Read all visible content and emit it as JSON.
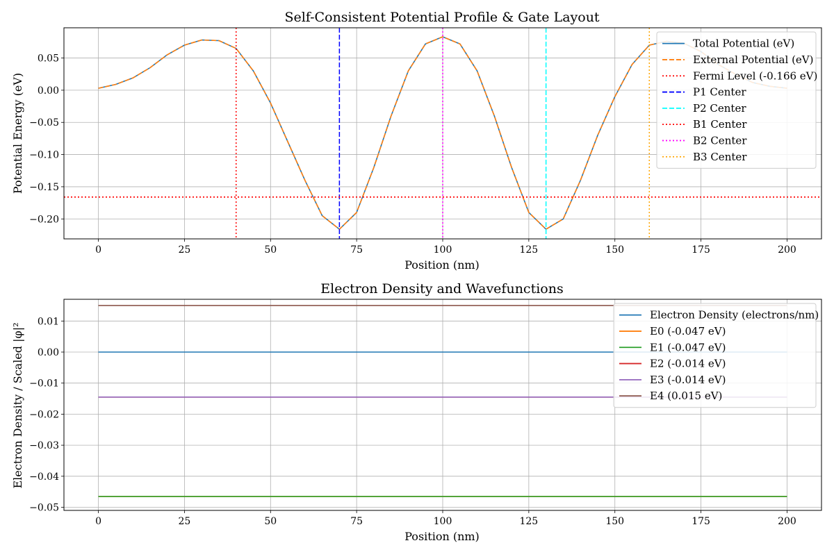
{
  "figure": {
    "background": "#ffffff"
  },
  "chart_data": [
    {
      "type": "line",
      "title": "Self-Consistent Potential Profile & Gate Layout",
      "xlabel": "Position (nm)",
      "ylabel": "Potential Energy (eV)",
      "xlim": [
        -10,
        210
      ],
      "ylim": [
        -0.231,
        0.097
      ],
      "xticks": [
        "0",
        "25",
        "50",
        "75",
        "100",
        "125",
        "150",
        "175",
        "200"
      ],
      "yticks": [
        "0.05",
        "0.00",
        "−0.05",
        "−0.10",
        "−0.15",
        "−0.20"
      ],
      "grid": true,
      "legend_position": "upper right",
      "x": [
        0,
        5,
        10,
        15,
        20,
        25,
        30,
        35,
        40,
        45,
        50,
        55,
        60,
        65,
        70,
        75,
        80,
        85,
        90,
        95,
        100,
        105,
        110,
        115,
        120,
        125,
        130,
        135,
        140,
        145,
        150,
        155,
        160,
        165,
        170,
        175,
        180,
        185,
        190,
        195,
        200
      ],
      "series": [
        {
          "name": "Total Potential (eV)",
          "color": "#1f77b4",
          "style": "solid",
          "values": [
            0.003,
            0.009,
            0.019,
            0.035,
            0.055,
            0.07,
            0.078,
            0.077,
            0.065,
            0.03,
            -0.02,
            -0.08,
            -0.14,
            -0.195,
            -0.216,
            -0.19,
            -0.12,
            -0.04,
            0.03,
            0.072,
            0.083,
            0.072,
            0.03,
            -0.04,
            -0.12,
            -0.19,
            -0.216,
            -0.2,
            -0.14,
            -0.07,
            -0.01,
            0.04,
            0.07,
            0.076,
            0.073,
            0.06,
            0.04,
            0.025,
            0.012,
            0.006,
            0.003
          ]
        },
        {
          "name": "External Potential (eV)",
          "color": "#ff7f0e",
          "style": "dashed",
          "values": [
            0.003,
            0.009,
            0.019,
            0.035,
            0.055,
            0.07,
            0.078,
            0.077,
            0.065,
            0.03,
            -0.02,
            -0.08,
            -0.14,
            -0.195,
            -0.216,
            -0.19,
            -0.12,
            -0.04,
            0.03,
            0.072,
            0.083,
            0.072,
            0.03,
            -0.04,
            -0.12,
            -0.19,
            -0.216,
            -0.2,
            -0.14,
            -0.07,
            -0.01,
            0.04,
            0.07,
            0.076,
            0.073,
            0.06,
            0.04,
            0.025,
            0.012,
            0.006,
            0.003
          ]
        }
      ],
      "hlines": [
        {
          "name": "Fermi Level (-0.166 eV)",
          "y": -0.166,
          "color": "#ff0000",
          "style": "dotted"
        }
      ],
      "vlines": [
        {
          "name": "P1 Center",
          "x": 70,
          "color": "#0000ff",
          "style": "dashed"
        },
        {
          "name": "P2 Center",
          "x": 130,
          "color": "#00ffff",
          "style": "dashed"
        },
        {
          "name": "B1 Center",
          "x": 40,
          "color": "#ff0000",
          "style": "dotted"
        },
        {
          "name": "B2 Center",
          "x": 100,
          "color": "#ff00ff",
          "style": "dotted"
        },
        {
          "name": "B3 Center",
          "x": 160,
          "color": "#ffa500",
          "style": "dotted"
        }
      ],
      "legend": [
        {
          "label": "Total Potential (eV)",
          "color": "#1f77b4",
          "style": "solid"
        },
        {
          "label": "External Potential (eV)",
          "color": "#ff7f0e",
          "style": "dashed"
        },
        {
          "label": "Fermi Level (-0.166 eV)",
          "color": "#ff0000",
          "style": "dotted"
        },
        {
          "label": "P1 Center",
          "color": "#0000ff",
          "style": "dashed"
        },
        {
          "label": "P2 Center",
          "color": "#00ffff",
          "style": "dashed"
        },
        {
          "label": "B1 Center",
          "color": "#ff0000",
          "style": "dotted"
        },
        {
          "label": "B2 Center",
          "color": "#ff00ff",
          "style": "dotted"
        },
        {
          "label": "B3 Center",
          "color": "#ffa500",
          "style": "dotted"
        }
      ]
    },
    {
      "type": "line",
      "title": "Electron Density and Wavefunctions",
      "xlabel": "Position (nm)",
      "ylabel": "Electron Density / Scaled |φ|²",
      "xlim": [
        -10,
        210
      ],
      "ylim": [
        -0.051,
        0.017
      ],
      "xticks": [
        "0",
        "25",
        "50",
        "75",
        "100",
        "125",
        "150",
        "175",
        "200"
      ],
      "yticks": [
        "0.01",
        "0.00",
        "−0.01",
        "−0.02",
        "−0.03",
        "−0.04",
        "−0.05"
      ],
      "grid": true,
      "legend_position": "upper right",
      "x": [
        0,
        200
      ],
      "series": [
        {
          "name": "Electron Density (electrons/nm)",
          "color": "#1f77b4",
          "style": "solid",
          "values": [
            0.0,
            0.0
          ]
        },
        {
          "name": "E0 (-0.047 eV)",
          "color": "#ff7f0e",
          "style": "solid",
          "values": [
            -0.0465,
            -0.0465
          ]
        },
        {
          "name": "E1 (-0.047 eV)",
          "color": "#2ca02c",
          "style": "solid",
          "values": [
            -0.0465,
            -0.0465
          ]
        },
        {
          "name": "E2 (-0.014 eV)",
          "color": "#d62728",
          "style": "solid",
          "values": [
            -0.0145,
            -0.0145
          ]
        },
        {
          "name": "E3 (-0.014 eV)",
          "color": "#9467bd",
          "style": "solid",
          "values": [
            -0.0145,
            -0.0145
          ]
        },
        {
          "name": "E4 (0.015 eV)",
          "color": "#8c564b",
          "style": "solid",
          "values": [
            0.015,
            0.015
          ]
        }
      ],
      "hlines": [],
      "vlines": [],
      "legend": [
        {
          "label": "Electron Density (electrons/nm)",
          "color": "#1f77b4",
          "style": "solid"
        },
        {
          "label": "E0 (-0.047 eV)",
          "color": "#ff7f0e",
          "style": "solid"
        },
        {
          "label": "E1 (-0.047 eV)",
          "color": "#2ca02c",
          "style": "solid"
        },
        {
          "label": "E2 (-0.014 eV)",
          "color": "#d62728",
          "style": "solid"
        },
        {
          "label": "E3 (-0.014 eV)",
          "color": "#9467bd",
          "style": "solid"
        },
        {
          "label": "E4 (0.015 eV)",
          "color": "#8c564b",
          "style": "solid"
        }
      ]
    }
  ]
}
